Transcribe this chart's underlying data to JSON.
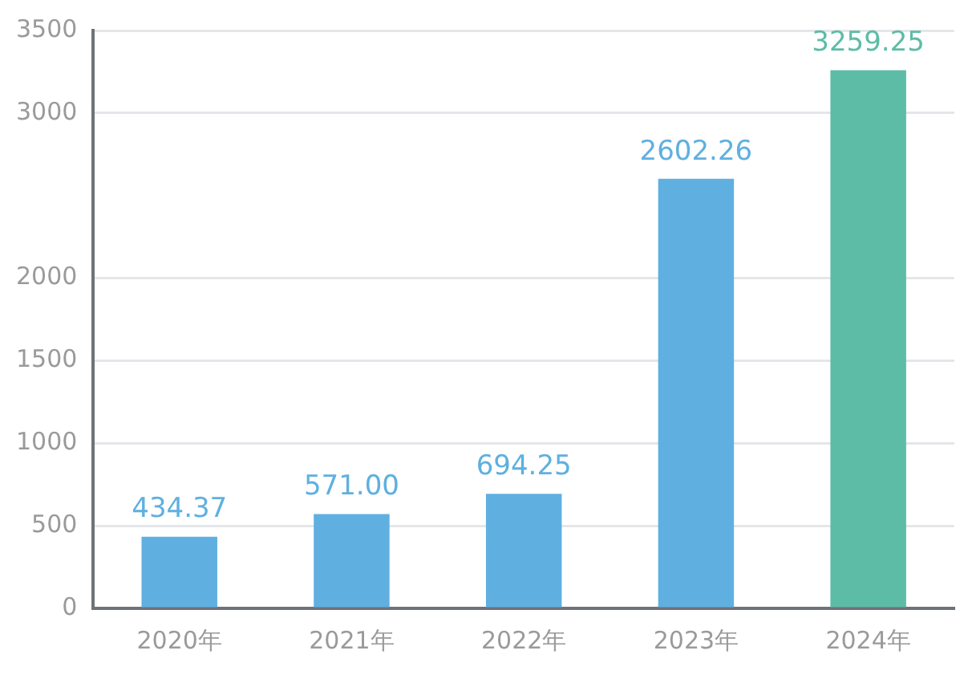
{
  "chart_data": {
    "type": "bar",
    "categories": [
      "2020年",
      "2021年",
      "2022年",
      "2023年",
      "2024年"
    ],
    "values": [
      434.37,
      571.0,
      694.25,
      2602.26,
      3259.25
    ],
    "value_labels": [
      "434.37",
      "571.00",
      "694.25",
      "2602.26",
      "3259.25"
    ],
    "colors": [
      "#5fb0e0",
      "#5fb0e0",
      "#5fb0e0",
      "#5fb0e0",
      "#5dbca6"
    ],
    "ylim": [
      0,
      3500
    ],
    "yticks": [
      0,
      500,
      1000,
      1500,
      2000,
      3000,
      3500
    ],
    "grid": "y",
    "legend": false
  }
}
